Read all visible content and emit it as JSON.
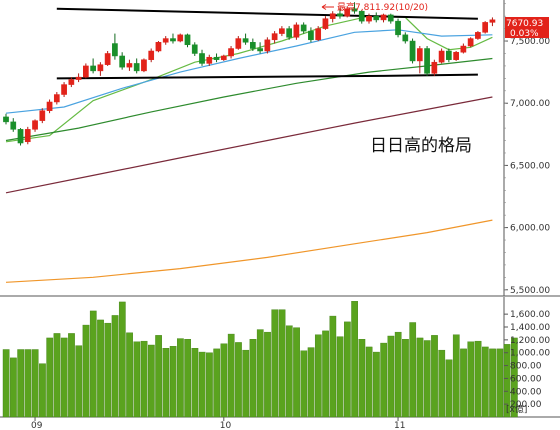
{
  "chart_data": [
    {
      "type": "candlestick",
      "title": "",
      "x_labels": [
        "09",
        "10",
        "11"
      ],
      "y_ticks": [
        "7,500.00",
        "7,000.00",
        "6,500.00",
        "6,000.00",
        "5,500.00"
      ],
      "ylim": [
        5450,
        7830
      ],
      "high_annotation": "最高7,811.92(10/20)",
      "last_price": "7670.93",
      "last_change": "0.03%",
      "overlay_text": "日日高的格局",
      "candles": [
        {
          "o": 6890,
          "h": 6915,
          "l": 6830,
          "c": 6850
        },
        {
          "o": 6850,
          "h": 6880,
          "l": 6770,
          "c": 6790
        },
        {
          "o": 6790,
          "h": 6800,
          "l": 6660,
          "c": 6680
        },
        {
          "o": 6690,
          "h": 6810,
          "l": 6670,
          "c": 6790
        },
        {
          "o": 6790,
          "h": 6870,
          "l": 6770,
          "c": 6860
        },
        {
          "o": 6860,
          "h": 6960,
          "l": 6840,
          "c": 6940
        },
        {
          "o": 6940,
          "h": 7030,
          "l": 6920,
          "c": 7010
        },
        {
          "o": 7010,
          "h": 7090,
          "l": 6990,
          "c": 7070
        },
        {
          "o": 7070,
          "h": 7170,
          "l": 7050,
          "c": 7150
        },
        {
          "o": 7150,
          "h": 7210,
          "l": 7130,
          "c": 7190
        },
        {
          "o": 7190,
          "h": 7240,
          "l": 7170,
          "c": 7210
        },
        {
          "o": 7210,
          "h": 7320,
          "l": 7200,
          "c": 7300
        },
        {
          "o": 7300,
          "h": 7360,
          "l": 7240,
          "c": 7260
        },
        {
          "o": 7260,
          "h": 7330,
          "l": 7220,
          "c": 7310
        },
        {
          "o": 7310,
          "h": 7420,
          "l": 7300,
          "c": 7400
        },
        {
          "o": 7480,
          "h": 7560,
          "l": 7350,
          "c": 7380
        },
        {
          "o": 7380,
          "h": 7410,
          "l": 7270,
          "c": 7290
        },
        {
          "o": 7290,
          "h": 7350,
          "l": 7260,
          "c": 7320
        },
        {
          "o": 7320,
          "h": 7360,
          "l": 7240,
          "c": 7260
        },
        {
          "o": 7260,
          "h": 7360,
          "l": 7250,
          "c": 7350
        },
        {
          "o": 7350,
          "h": 7440,
          "l": 7330,
          "c": 7420
        },
        {
          "o": 7420,
          "h": 7500,
          "l": 7410,
          "c": 7490
        },
        {
          "o": 7490,
          "h": 7540,
          "l": 7470,
          "c": 7520
        },
        {
          "o": 7520,
          "h": 7560,
          "l": 7480,
          "c": 7500
        },
        {
          "o": 7500,
          "h": 7560,
          "l": 7490,
          "c": 7550
        },
        {
          "o": 7550,
          "h": 7560,
          "l": 7450,
          "c": 7470
        },
        {
          "o": 7470,
          "h": 7490,
          "l": 7380,
          "c": 7400
        },
        {
          "o": 7400,
          "h": 7430,
          "l": 7300,
          "c": 7320
        },
        {
          "o": 7320,
          "h": 7390,
          "l": 7300,
          "c": 7370
        },
        {
          "o": 7370,
          "h": 7400,
          "l": 7330,
          "c": 7350
        },
        {
          "o": 7350,
          "h": 7390,
          "l": 7340,
          "c": 7380
        },
        {
          "o": 7380,
          "h": 7460,
          "l": 7360,
          "c": 7440
        },
        {
          "o": 7440,
          "h": 7540,
          "l": 7430,
          "c": 7520
        },
        {
          "o": 7520,
          "h": 7560,
          "l": 7470,
          "c": 7490
        },
        {
          "o": 7490,
          "h": 7520,
          "l": 7420,
          "c": 7440
        },
        {
          "o": 7440,
          "h": 7490,
          "l": 7400,
          "c": 7420
        },
        {
          "o": 7420,
          "h": 7530,
          "l": 7400,
          "c": 7510
        },
        {
          "o": 7510,
          "h": 7580,
          "l": 7480,
          "c": 7560
        },
        {
          "o": 7560,
          "h": 7620,
          "l": 7540,
          "c": 7600
        },
        {
          "o": 7600,
          "h": 7620,
          "l": 7510,
          "c": 7530
        },
        {
          "o": 7530,
          "h": 7650,
          "l": 7510,
          "c": 7630
        },
        {
          "o": 7630,
          "h": 7650,
          "l": 7560,
          "c": 7580
        },
        {
          "o": 7580,
          "h": 7610,
          "l": 7490,
          "c": 7510
        },
        {
          "o": 7510,
          "h": 7620,
          "l": 7500,
          "c": 7600
        },
        {
          "o": 7600,
          "h": 7700,
          "l": 7590,
          "c": 7680
        },
        {
          "o": 7680,
          "h": 7740,
          "l": 7650,
          "c": 7720
        },
        {
          "o": 7720,
          "h": 7760,
          "l": 7680,
          "c": 7700
        },
        {
          "o": 7700,
          "h": 7780,
          "l": 7690,
          "c": 7760
        },
        {
          "o": 7760,
          "h": 7812,
          "l": 7720,
          "c": 7740
        },
        {
          "o": 7740,
          "h": 7750,
          "l": 7640,
          "c": 7660
        },
        {
          "o": 7660,
          "h": 7720,
          "l": 7640,
          "c": 7700
        },
        {
          "o": 7700,
          "h": 7730,
          "l": 7650,
          "c": 7670
        },
        {
          "o": 7670,
          "h": 7720,
          "l": 7650,
          "c": 7710
        },
        {
          "o": 7710,
          "h": 7720,
          "l": 7640,
          "c": 7660
        },
        {
          "o": 7660,
          "h": 7680,
          "l": 7530,
          "c": 7550
        },
        {
          "o": 7550,
          "h": 7570,
          "l": 7480,
          "c": 7500
        },
        {
          "o": 7500,
          "h": 7520,
          "l": 7320,
          "c": 7340
        },
        {
          "o": 7340,
          "h": 7460,
          "l": 7240,
          "c": 7440
        },
        {
          "o": 7440,
          "h": 7460,
          "l": 7220,
          "c": 7240
        },
        {
          "o": 7240,
          "h": 7350,
          "l": 7220,
          "c": 7330
        },
        {
          "o": 7330,
          "h": 7440,
          "l": 7320,
          "c": 7420
        },
        {
          "o": 7420,
          "h": 7440,
          "l": 7330,
          "c": 7350
        },
        {
          "o": 7350,
          "h": 7420,
          "l": 7340,
          "c": 7410
        },
        {
          "o": 7410,
          "h": 7480,
          "l": 7400,
          "c": 7460
        },
        {
          "o": 7460,
          "h": 7530,
          "l": 7450,
          "c": 7520
        },
        {
          "o": 7520,
          "h": 7580,
          "l": 7510,
          "c": 7570
        },
        {
          "o": 7570,
          "h": 7660,
          "l": 7560,
          "c": 7650
        },
        {
          "o": 7650,
          "h": 7690,
          "l": 7620,
          "c": 7671
        }
      ],
      "moving_averages": [
        {
          "color": "#66bb44",
          "points": [
            [
              0,
              6690
            ],
            [
              6,
              6740
            ],
            [
              12,
              7020
            ],
            [
              20,
              7190
            ],
            [
              26,
              7330
            ],
            [
              32,
              7400
            ],
            [
              38,
              7500
            ],
            [
              44,
              7620
            ],
            [
              50,
              7700
            ],
            [
              55,
              7690
            ],
            [
              58,
              7520
            ],
            [
              61,
              7430
            ],
            [
              64,
              7450
            ],
            [
              67,
              7530
            ]
          ]
        },
        {
          "color": "#4aa3e0",
          "points": [
            [
              0,
              6920
            ],
            [
              8,
              6970
            ],
            [
              16,
              7120
            ],
            [
              24,
              7250
            ],
            [
              32,
              7360
            ],
            [
              40,
              7460
            ],
            [
              48,
              7570
            ],
            [
              54,
              7590
            ],
            [
              60,
              7540
            ],
            [
              67,
              7550
            ]
          ]
        },
        {
          "color": "#2e8b2e",
          "points": [
            [
              0,
              6700
            ],
            [
              10,
              6800
            ],
            [
              20,
              6930
            ],
            [
              30,
              7050
            ],
            [
              40,
              7160
            ],
            [
              50,
              7250
            ],
            [
              58,
              7300
            ],
            [
              67,
              7360
            ]
          ]
        },
        {
          "color": "#7a2a3a",
          "points": [
            [
              0,
              6280
            ],
            [
              12,
              6420
            ],
            [
              24,
              6560
            ],
            [
              36,
              6700
            ],
            [
              48,
              6840
            ],
            [
              58,
              6950
            ],
            [
              67,
              7050
            ]
          ]
        },
        {
          "color": "#f0962a",
          "points": [
            [
              0,
              5560
            ],
            [
              12,
              5600
            ],
            [
              24,
              5670
            ],
            [
              36,
              5760
            ],
            [
              48,
              5870
            ],
            [
              58,
              5960
            ],
            [
              67,
              6060
            ]
          ]
        }
      ],
      "resistance_line": [
        [
          7,
          7760
        ],
        [
          65,
          7680
        ]
      ],
      "support_line": [
        [
          7,
          7200
        ],
        [
          52,
          7220
        ],
        [
          65,
          7230
        ]
      ]
    },
    {
      "type": "bar",
      "title": "",
      "y_ticks": [
        "1,600.00",
        "1,400.00",
        "1,200.00",
        "1,000.00",
        "800.00",
        "600.00",
        "400.00",
        "200.00"
      ],
      "unit": "[x億]",
      "ylim": [
        0,
        1820
      ],
      "values": [
        1050,
        920,
        1050,
        1050,
        1050,
        830,
        1230,
        1300,
        1230,
        1300,
        1110,
        1430,
        1650,
        1510,
        1460,
        1580,
        1790,
        1310,
        1170,
        1180,
        1120,
        1270,
        1070,
        1100,
        1220,
        1210,
        1070,
        1010,
        1000,
        1060,
        1140,
        1290,
        1160,
        1040,
        1210,
        1360,
        1320,
        1670,
        1670,
        1420,
        1390,
        1030,
        1080,
        1280,
        1340,
        1570,
        1250,
        1480,
        1800,
        1210,
        1090,
        1010,
        1150,
        1260,
        1320,
        1210,
        1470,
        1230,
        1190,
        1270,
        1040,
        890,
        1280,
        1060,
        1170,
        1180,
        1090,
        1060,
        1060,
        1130,
        1230
      ]
    }
  ]
}
